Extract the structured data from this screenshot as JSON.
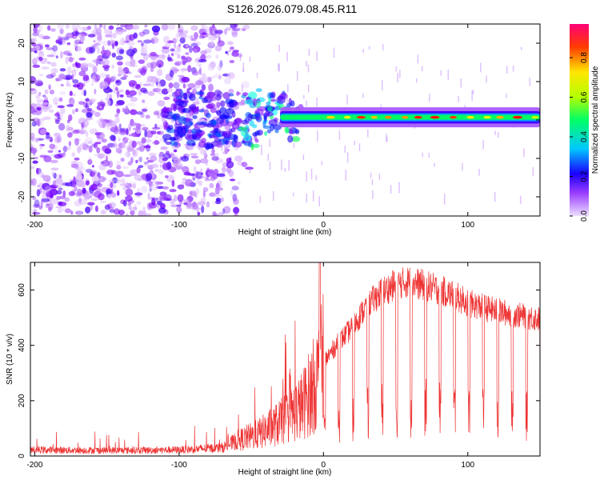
{
  "title": "S126.2026.079.08.45.R11",
  "chart_data": [
    {
      "type": "heatmap",
      "name": "spectrogram",
      "xlabel": "Height of straight line (km)",
      "ylabel": "Frequency (Hz)",
      "xlim": [
        -203,
        150
      ],
      "ylim": [
        -25,
        25
      ],
      "xticks": [
        -200,
        -100,
        0,
        100
      ],
      "yticks": [
        -20,
        -10,
        0,
        10,
        20
      ],
      "colorbar": {
        "label": "Normalized spectral amplitude",
        "range": [
          0.0,
          0.97
        ],
        "ticks": [
          0.0,
          0.2,
          0.4,
          0.6,
          0.8
        ],
        "colormap": [
          "#e6ccff",
          "#7a00ff",
          "#0000ff",
          "#00ffff",
          "#00ff00",
          "#ffff00",
          "#ff0000",
          "#ff0066"
        ]
      },
      "features": {
        "noise_region_x": [
          -203,
          -80
        ],
        "carrier_start_x": -30,
        "carrier_frequency_hz": 0.7,
        "carrier_amplitude": 0.85
      }
    },
    {
      "type": "line",
      "name": "snr",
      "xlabel": "Height of straight line (km)",
      "ylabel": "SNR (10 * v/v)",
      "xlim": [
        -203,
        150
      ],
      "ylim": [
        0,
        700
      ],
      "xticks": [
        -200,
        -100,
        0,
        100
      ],
      "yticks": [
        0,
        200,
        400,
        600
      ],
      "color": "#ee3333",
      "envelope": {
        "x": [
          -203,
          -150,
          -100,
          -70,
          -60,
          -45,
          -30,
          -15,
          -5,
          0,
          10,
          20,
          30,
          40,
          50,
          60,
          70,
          80,
          90,
          100,
          110,
          120,
          130,
          140,
          150
        ],
        "y": [
          22,
          20,
          22,
          30,
          55,
          80,
          120,
          180,
          270,
          350,
          420,
          480,
          560,
          610,
          640,
          650,
          635,
          620,
          600,
          570,
          555,
          540,
          530,
          520,
          510
        ]
      }
    }
  ]
}
